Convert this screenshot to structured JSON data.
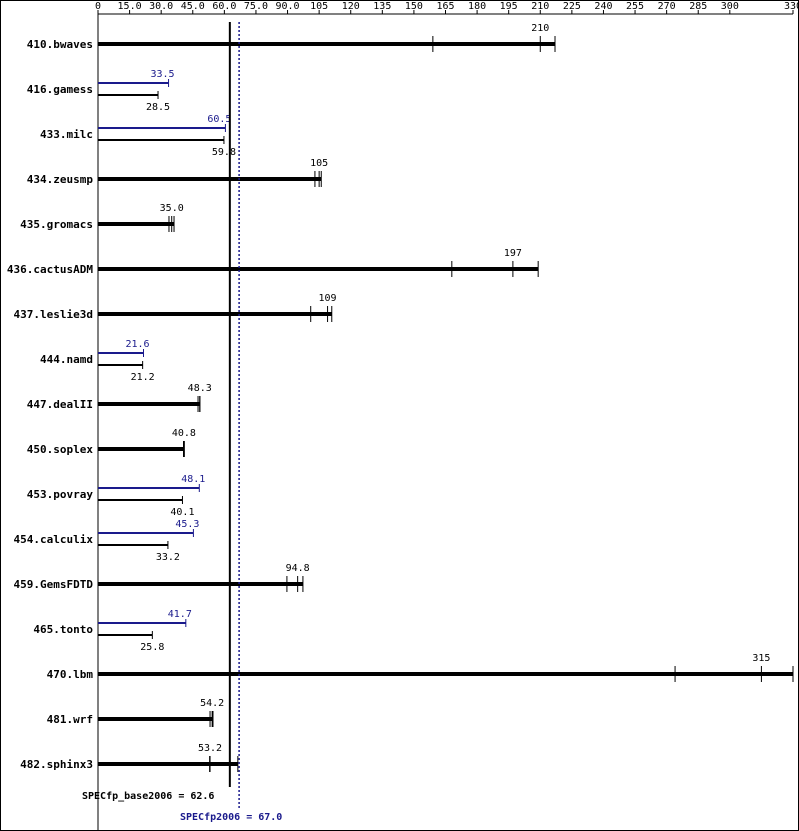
{
  "chart_data": {
    "type": "spec-bar",
    "xlim": [
      0,
      330
    ],
    "xticks": [
      0,
      {
        "value": 15,
        "label": "15.0"
      },
      {
        "value": 30,
        "label": "30.0"
      },
      {
        "value": 45,
        "label": "45.0"
      },
      {
        "value": 60,
        "label": "60.0"
      },
      {
        "value": 75,
        "label": "75.0"
      },
      {
        "value": 90,
        "label": "90.0"
      },
      105,
      120,
      135,
      150,
      165,
      180,
      195,
      210,
      225,
      240,
      255,
      270,
      285,
      300,
      330
    ],
    "base_color": "#000000",
    "peak_color": "#1a1a8c",
    "benchmarks": [
      {
        "name": "410.bwaves",
        "base": 210,
        "runs": [
          159,
          210,
          217
        ]
      },
      {
        "name": "416.gamess",
        "base": 28.5,
        "peak": 33.5
      },
      {
        "name": "433.milc",
        "base": 59.8,
        "peak": 60.5
      },
      {
        "name": "434.zeusmp",
        "base": 105,
        "runs": [
          103,
          105,
          106
        ]
      },
      {
        "name": "435.gromacs",
        "base": 35.0,
        "base_label": "35.0",
        "runs": [
          33.7,
          35.0,
          36.1
        ]
      },
      {
        "name": "436.cactusADM",
        "base": 197,
        "runs": [
          168,
          197,
          209
        ]
      },
      {
        "name": "437.leslie3d",
        "base": 109,
        "runs": [
          101,
          109,
          111
        ]
      },
      {
        "name": "444.namd",
        "base": 21.2,
        "peak": 21.6
      },
      {
        "name": "447.dealII",
        "base": 48.3,
        "runs": [
          47.5,
          48.3,
          48.4
        ]
      },
      {
        "name": "450.soplex",
        "base": 40.8,
        "runs": [
          40.6,
          40.8,
          41.0
        ]
      },
      {
        "name": "453.povray",
        "base": 40.1,
        "peak": 48.1
      },
      {
        "name": "454.calculix",
        "base": 33.2,
        "peak": 45.3
      },
      {
        "name": "459.GemsFDTD",
        "base": 94.8,
        "runs": [
          89.7,
          94.8,
          97.3
        ]
      },
      {
        "name": "465.tonto",
        "base": 25.8,
        "peak": 41.7
      },
      {
        "name": "470.lbm",
        "base": 315,
        "runs": [
          274,
          315,
          330
        ]
      },
      {
        "name": "481.wrf",
        "base": 54.2,
        "runs": [
          53.2,
          54.2,
          54.6
        ]
      },
      {
        "name": "482.sphinx3",
        "base": 53.2,
        "runs": [
          53.0,
          53.2,
          66.4
        ]
      }
    ],
    "references": [
      {
        "label": "SPECfp_base2006 =",
        "value": 62.6,
        "style": "solid",
        "color": "#000000"
      },
      {
        "label": "SPECfp2006 =",
        "value": 67.0,
        "value_label": "67.0",
        "style": "dotted",
        "color": "#1a1a8c"
      }
    ]
  }
}
